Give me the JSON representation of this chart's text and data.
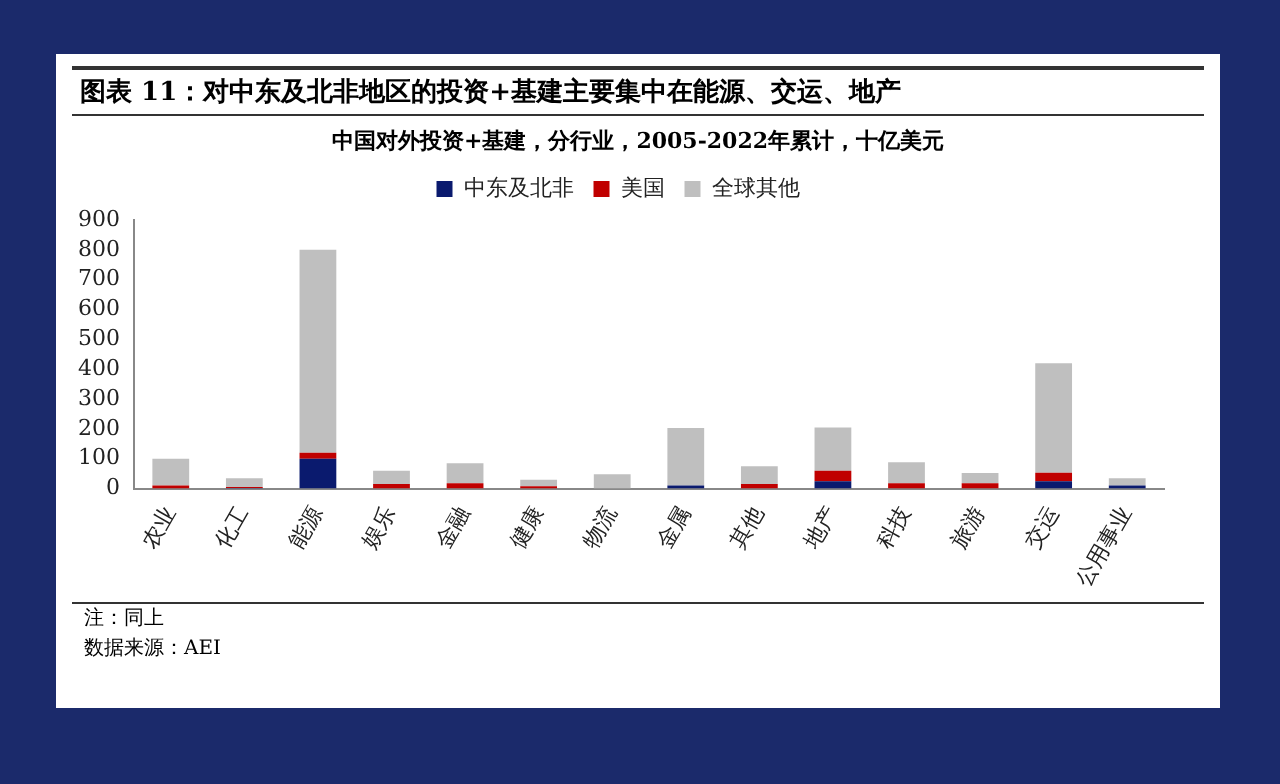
{
  "chart_data": {
    "type": "bar",
    "title": "图表 11：对中东及北非地区的投资+基建主要集中在能源、交运、地产",
    "subtitle": "中国对外投资+基建，分行业，2005-2022年累计，十亿美元",
    "categories": [
      "农业",
      "化工",
      "能源",
      "娱乐",
      "金融",
      "健康",
      "物流",
      "金属",
      "其他",
      "地产",
      "科技",
      "旅游",
      "交运",
      "公用事业"
    ],
    "stacked": true,
    "series": [
      {
        "name": "中东及北非",
        "color": "#0a1a6e",
        "values": [
          0,
          2,
          100,
          0,
          0,
          0,
          0,
          10,
          0,
          25,
          0,
          0,
          25,
          10
        ]
      },
      {
        "name": "美国",
        "color": "#c00000",
        "values": [
          10,
          3,
          20,
          15,
          18,
          8,
          0,
          0,
          15,
          35,
          18,
          18,
          28,
          0
        ]
      },
      {
        "name": "全球其他",
        "color": "#bfbfbf",
        "values": [
          90,
          30,
          680,
          45,
          67,
          22,
          48,
          193,
          60,
          145,
          70,
          34,
          367,
          25
        ]
      }
    ],
    "ylim": [
      0,
      900
    ],
    "yticks": [
      0,
      100,
      200,
      300,
      400,
      500,
      600,
      700,
      800,
      900
    ],
    "grid": false,
    "legend": "top",
    "annotations": [
      "注：同上",
      "数据来源：AEI"
    ]
  }
}
